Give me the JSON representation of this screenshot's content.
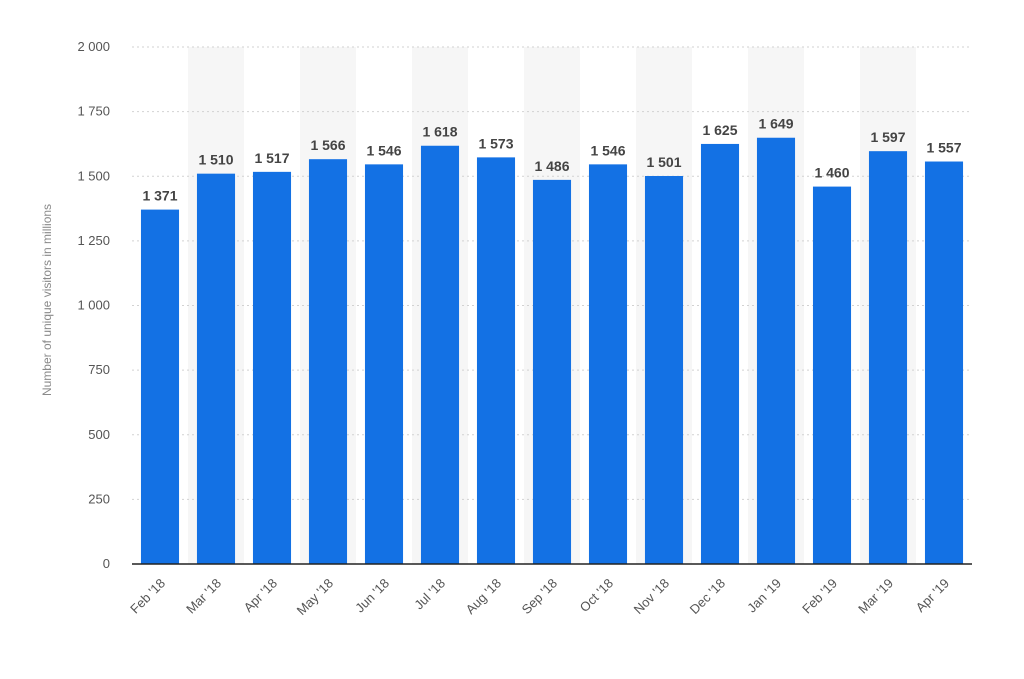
{
  "chart_data": {
    "type": "bar",
    "categories": [
      "Feb '18",
      "Mar '18",
      "Apr '18",
      "May '18",
      "Jun '18",
      "Jul '18",
      "Aug '18",
      "Sep '18",
      "Oct '18",
      "Nov '18",
      "Dec '18",
      "Jan '19",
      "Feb '19",
      "Mar '19",
      "Apr '19"
    ],
    "values": [
      1371,
      1510,
      1517,
      1566,
      1546,
      1618,
      1573,
      1486,
      1546,
      1501,
      1625,
      1649,
      1460,
      1597,
      1557
    ],
    "value_labels": [
      "1 371",
      "1 510",
      "1 517",
      "1 566",
      "1 546",
      "1 618",
      "1 573",
      "1 486",
      "1 546",
      "1 501",
      "1 625",
      "1 649",
      "1 460",
      "1 597",
      "1 557"
    ],
    "title": "",
    "xlabel": "",
    "ylabel": "Number of unique visitors in millions",
    "ylim": [
      0,
      2000
    ],
    "y_ticks": [
      0,
      250,
      500,
      750,
      1000,
      1250,
      1500,
      1750,
      2000
    ],
    "y_tick_labels": [
      "0",
      "250",
      "500",
      "750",
      "1 000",
      "1 250",
      "1 500",
      "1 750",
      "2 000"
    ],
    "grid": true,
    "legend": "none",
    "colors": {
      "bar": "#1371e4",
      "grid": "#d2d2d2",
      "band": "#f6f6f6",
      "axis": "#222222"
    }
  }
}
